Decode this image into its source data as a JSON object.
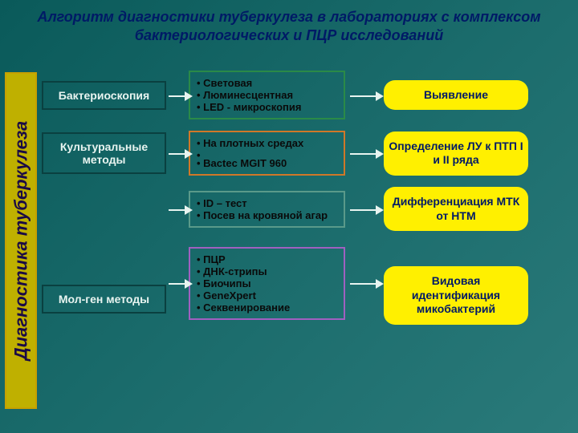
{
  "colors": {
    "title_color": "#001a66",
    "sidebar_border": "#c7a000",
    "sidebar_bg": "#bfb000",
    "sidebar_text": "#1a0a45",
    "col1_border_1": "#0a4040",
    "col1_text": "#e8f4f0",
    "col2_border_green": "#2a8a48",
    "col2_border_orange": "#d07828",
    "col2_border_teal": "#5a9a8a",
    "col2_border_purple": "#a060c0",
    "col2_text": "#0a0a0a",
    "col3_bg": "#fff000",
    "col3_text": "#001a66",
    "arrow_color": "#e8f4f0"
  },
  "title": "Алгоритм диагностики туберкулеза в лабораториях с комплексом бактериологических и ПЦР исследований",
  "title_fontsize": 18,
  "sidebar_label": "Диагностика туберкулеза",
  "sidebar_fontsize": 22,
  "rows": [
    {
      "method": "Бактериоскопия",
      "details": [
        "Световая",
        "Люминесцентная",
        "LED - микроскопия"
      ],
      "result": "Выявление",
      "col2_border_key": "col2_border_green"
    },
    {
      "method": "Культуральные методы",
      "details": [
        "На плотных средах",
        "",
        "Bactec MGIT 960"
      ],
      "result": "Определение ЛУ к ПТП I и II ряда",
      "col2_border_key": "col2_border_orange"
    },
    {
      "method": "",
      "details": [
        "ID – тест",
        "Посев на кровяной агар"
      ],
      "result": "Дифференциация МТК от НТМ",
      "col2_border_key": "col2_border_teal"
    },
    {
      "method": "Мол-ген методы",
      "details": [
        "ПЦР",
        "ДНК-стрипы",
        "Биочипы",
        "GeneXpert",
        "Секвенирование"
      ],
      "result": "Видовая идентификация микобактерий",
      "col2_border_key": "col2_border_purple"
    }
  ]
}
